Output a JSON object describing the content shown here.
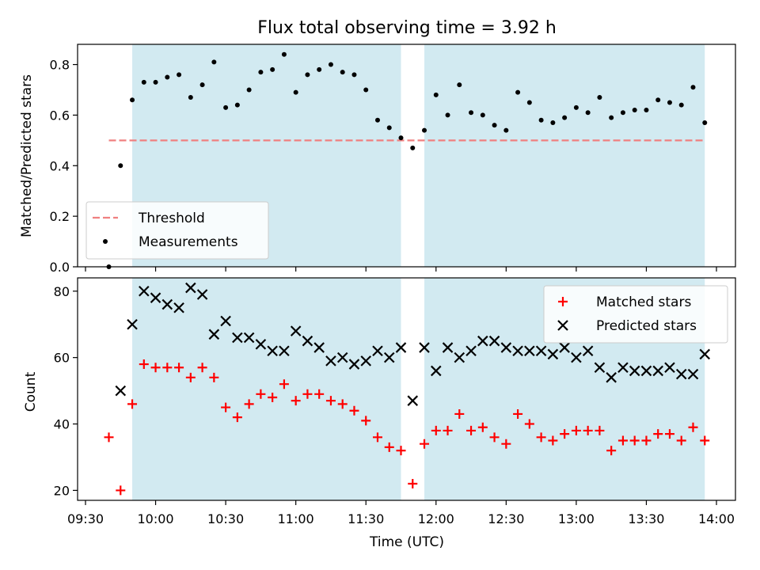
{
  "chart_data": {
    "type": "scatter",
    "title": "Flux total observing time = 3.92 h",
    "xlabel": "Time (UTC)",
    "x_tick_labels": [
      "09:30",
      "10:00",
      "10:30",
      "11:00",
      "11:30",
      "12:00",
      "12:30",
      "13:00",
      "13:30",
      "14:00"
    ],
    "shaded_intervals": [
      [
        "09:50",
        "11:45"
      ],
      [
        "11:55",
        "13:55"
      ]
    ],
    "shade_color": "#add8e6",
    "x": [
      "09:40",
      "09:45",
      "09:50",
      "09:55",
      "10:00",
      "10:05",
      "10:10",
      "10:15",
      "10:20",
      "10:25",
      "10:30",
      "10:35",
      "10:40",
      "10:45",
      "10:50",
      "10:55",
      "11:00",
      "11:05",
      "11:10",
      "11:15",
      "11:20",
      "11:25",
      "11:30",
      "11:35",
      "11:40",
      "11:45",
      "11:50",
      "11:55",
      "12:00",
      "12:05",
      "12:10",
      "12:15",
      "12:20",
      "12:25",
      "12:30",
      "12:35",
      "12:40",
      "12:45",
      "12:50",
      "12:55",
      "13:00",
      "13:05",
      "13:10",
      "13:15",
      "13:20",
      "13:25",
      "13:30",
      "13:35",
      "13:40",
      "13:45",
      "13:50",
      "13:55"
    ],
    "panels": [
      {
        "ylabel": "Matched/Predicted stars",
        "ylim": [
          0,
          0.88
        ],
        "y_ticks": [
          "0.0",
          "0.2",
          "0.4",
          "0.6",
          "0.8"
        ],
        "legend_position": "lower-left",
        "threshold": {
          "name": "Threshold",
          "value": 0.5,
          "from": "09:40",
          "to": "13:55",
          "color": "#f08080"
        },
        "series": [
          {
            "name": "Measurements",
            "marker": "dot",
            "color": "#000000",
            "values": [
              0.0,
              0.4,
              0.66,
              0.73,
              0.73,
              0.75,
              0.76,
              0.67,
              0.72,
              0.81,
              0.63,
              0.64,
              0.7,
              0.77,
              0.78,
              0.84,
              0.69,
              0.76,
              0.78,
              0.8,
              0.77,
              0.76,
              0.7,
              0.58,
              0.55,
              0.51,
              0.47,
              0.54,
              0.68,
              0.6,
              0.72,
              0.61,
              0.6,
              0.56,
              0.54,
              0.69,
              0.65,
              0.58,
              0.57,
              0.59,
              0.63,
              0.61,
              0.67,
              0.59,
              0.61,
              0.62,
              0.62,
              0.66,
              0.65,
              0.64,
              0.71,
              0.57
            ]
          }
        ]
      },
      {
        "ylabel": "Count",
        "ylim": [
          17,
          84
        ],
        "y_ticks": [
          "20",
          "40",
          "60",
          "80"
        ],
        "legend_position": "upper-right",
        "series": [
          {
            "name": "Matched stars",
            "marker": "plus",
            "color": "#ff0000",
            "values": [
              36,
              20,
              46,
              58,
              57,
              57,
              57,
              54,
              57,
              54,
              45,
              42,
              46,
              49,
              48,
              52,
              47,
              49,
              49,
              47,
              46,
              44,
              41,
              36,
              33,
              32,
              22,
              34,
              38,
              38,
              43,
              38,
              39,
              36,
              34,
              43,
              40,
              36,
              35,
              37,
              38,
              38,
              38,
              32,
              35,
              35,
              35,
              37,
              37,
              35,
              39,
              35
            ]
          },
          {
            "name": "Predicted stars",
            "marker": "x",
            "color": "#000000",
            "values": [
              null,
              50,
              70,
              80,
              78,
              76,
              75,
              81,
              79,
              67,
              71,
              66,
              66,
              64,
              62,
              62,
              68,
              65,
              63,
              59,
              60,
              58,
              59,
              62,
              60,
              63,
              47,
              63,
              56,
              63,
              60,
              62,
              65,
              65,
              63,
              62,
              62,
              62,
              61,
              63,
              60,
              62,
              57,
              54,
              57,
              56,
              56,
              56,
              57,
              55,
              55,
              61
            ]
          }
        ]
      }
    ]
  }
}
